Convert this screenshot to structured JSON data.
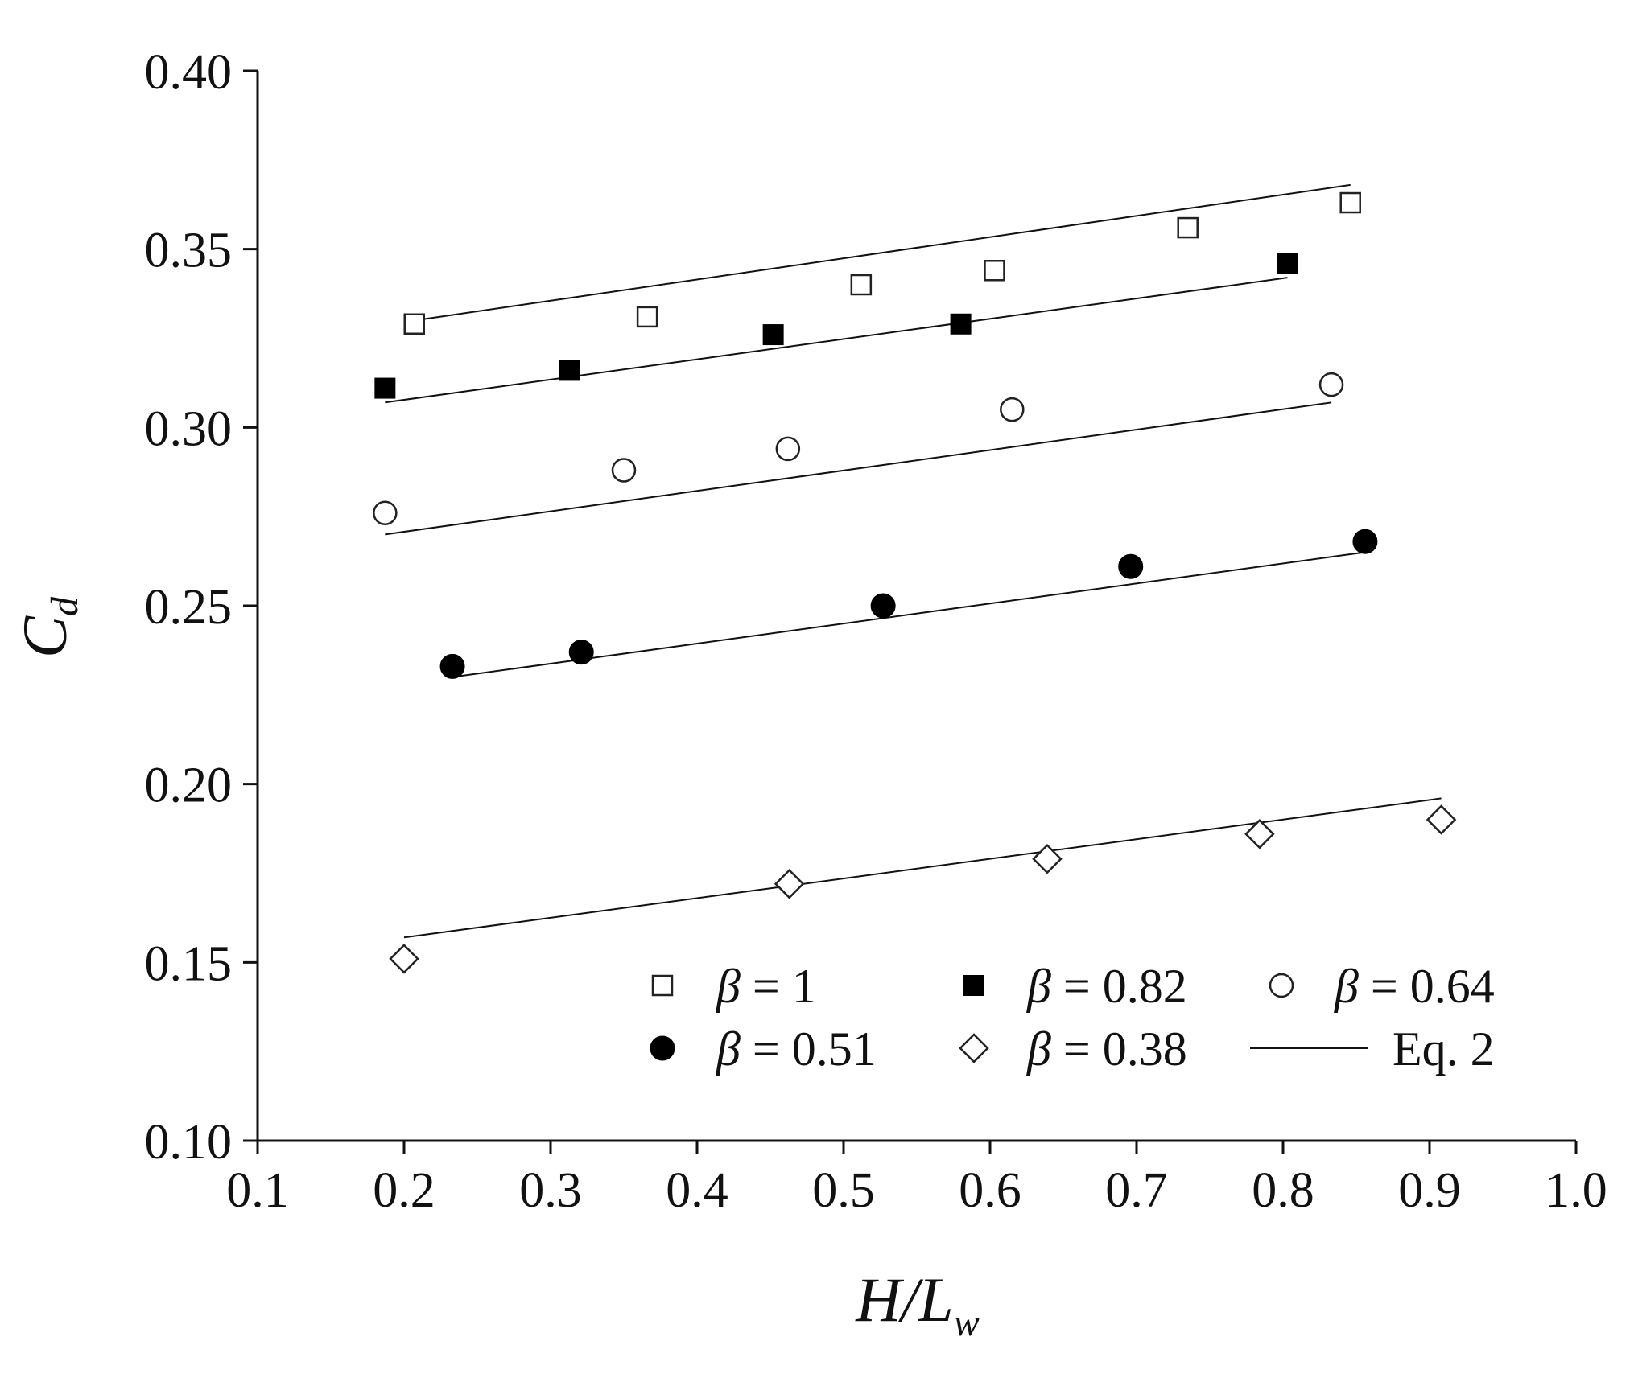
{
  "chart_data": {
    "type": "scatter",
    "title": "",
    "xlabel": "H/L",
    "xlabel_sub": "w",
    "ylabel": "C",
    "ylabel_sub": "d",
    "xlim": [
      0.1,
      1.0
    ],
    "ylim": [
      0.1,
      0.4
    ],
    "xticks": [
      "0.1",
      "0.2",
      "0.3",
      "0.4",
      "0.5",
      "0.6",
      "0.7",
      "0.8",
      "0.9",
      "1.0"
    ],
    "yticks": [
      "0.10",
      "0.15",
      "0.20",
      "0.25",
      "0.30",
      "0.35",
      "0.40"
    ],
    "grid": false,
    "legend_position": "bottom-right",
    "series": [
      {
        "name": "β = 1",
        "legend_symbol": "β",
        "legend_value": " = 1",
        "marker": "open-square",
        "points": [
          [
            0.207,
            0.329
          ],
          [
            0.366,
            0.331
          ],
          [
            0.512,
            0.34
          ],
          [
            0.603,
            0.344
          ],
          [
            0.735,
            0.356
          ],
          [
            0.846,
            0.363
          ]
        ],
        "fit": [
          [
            0.207,
            0.33
          ],
          [
            0.846,
            0.368
          ]
        ]
      },
      {
        "name": "β = 0.82",
        "legend_symbol": "β",
        "legend_value": " = 0.82",
        "marker": "filled-square",
        "points": [
          [
            0.187,
            0.311
          ],
          [
            0.313,
            0.316
          ],
          [
            0.452,
            0.326
          ],
          [
            0.58,
            0.329
          ],
          [
            0.803,
            0.346
          ]
        ],
        "fit": [
          [
            0.187,
            0.307
          ],
          [
            0.803,
            0.342
          ]
        ]
      },
      {
        "name": "β = 0.64",
        "legend_symbol": "β",
        "legend_value": " = 0.64",
        "marker": "open-circle",
        "points": [
          [
            0.187,
            0.276
          ],
          [
            0.35,
            0.288
          ],
          [
            0.462,
            0.294
          ],
          [
            0.615,
            0.305
          ],
          [
            0.833,
            0.312
          ]
        ],
        "fit": [
          [
            0.187,
            0.27
          ],
          [
            0.833,
            0.307
          ]
        ]
      },
      {
        "name": "β = 0.51",
        "legend_symbol": "β",
        "legend_value": " = 0.51",
        "marker": "filled-circle",
        "points": [
          [
            0.233,
            0.233
          ],
          [
            0.321,
            0.237
          ],
          [
            0.527,
            0.25
          ],
          [
            0.696,
            0.261
          ],
          [
            0.856,
            0.268
          ]
        ],
        "fit": [
          [
            0.233,
            0.23
          ],
          [
            0.856,
            0.265
          ]
        ]
      },
      {
        "name": "β = 0.38",
        "legend_symbol": "β",
        "legend_value": " = 0.38",
        "marker": "open-diamond",
        "points": [
          [
            0.2,
            0.151
          ],
          [
            0.463,
            0.172
          ],
          [
            0.639,
            0.179
          ],
          [
            0.784,
            0.186
          ],
          [
            0.908,
            0.19
          ]
        ],
        "fit": [
          [
            0.2,
            0.157
          ],
          [
            0.908,
            0.196
          ]
        ]
      }
    ],
    "fit_legend_label": "Eq. 2"
  }
}
